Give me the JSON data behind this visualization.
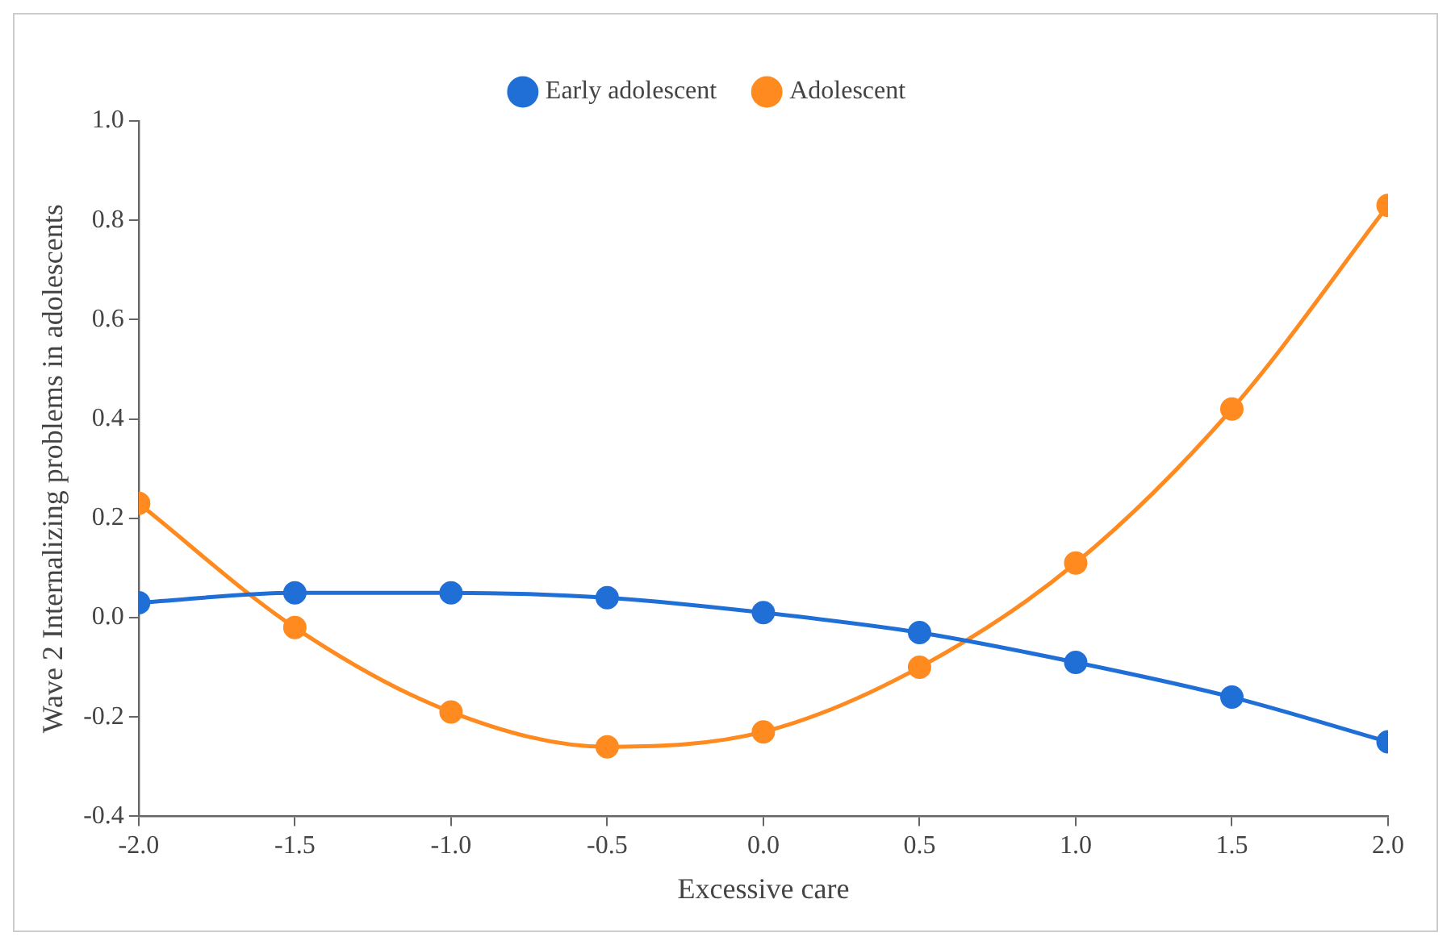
{
  "chart_data": {
    "type": "line",
    "xlabel": "Excessive care",
    "ylabel": "Wave 2 Internalizing problems in adolescents",
    "x": [
      -2,
      -1.5,
      -1,
      -0.5,
      0,
      0.5,
      1,
      1.5,
      2
    ],
    "series": [
      {
        "name": "Early adolescent",
        "color": "#1f6fd6",
        "values": [
          0.03,
          0.05,
          0.05,
          0.04,
          0.01,
          -0.03,
          -0.09,
          -0.16,
          -0.25
        ]
      },
      {
        "name": "Adolescent",
        "color": "#ff8a1f",
        "values": [
          0.23,
          -0.02,
          -0.19,
          -0.26,
          -0.23,
          -0.1,
          0.11,
          0.42,
          0.83
        ]
      }
    ],
    "xlim": [
      -2,
      2
    ],
    "xticks": [
      {
        "value": -2,
        "label": "-2.0"
      },
      {
        "value": -1.5,
        "label": "-1.5"
      },
      {
        "value": -1,
        "label": "-1.0"
      },
      {
        "value": -0.5,
        "label": "-0.5"
      },
      {
        "value": 0,
        "label": "0.0"
      },
      {
        "value": 0.5,
        "label": "0.5"
      },
      {
        "value": 1,
        "label": "1.0"
      },
      {
        "value": 1.5,
        "label": "1.5"
      },
      {
        "value": 2,
        "label": "2.0"
      }
    ],
    "ylim": [
      -0.4,
      1
    ],
    "yticks": [
      {
        "value": -0.4,
        "label": "-0.4"
      },
      {
        "value": -0.2,
        "label": "-0.2"
      },
      {
        "value": 0,
        "label": "0.0"
      },
      {
        "value": 0.2,
        "label": "0.2"
      },
      {
        "value": 0.4,
        "label": "0.4"
      },
      {
        "value": 0.6,
        "label": "0.6"
      },
      {
        "value": 0.8,
        "label": "0.8"
      },
      {
        "value": 1,
        "label": "1.0"
      }
    ],
    "grid": false,
    "legend": "top",
    "marker": "circle",
    "line_style": "solid"
  }
}
